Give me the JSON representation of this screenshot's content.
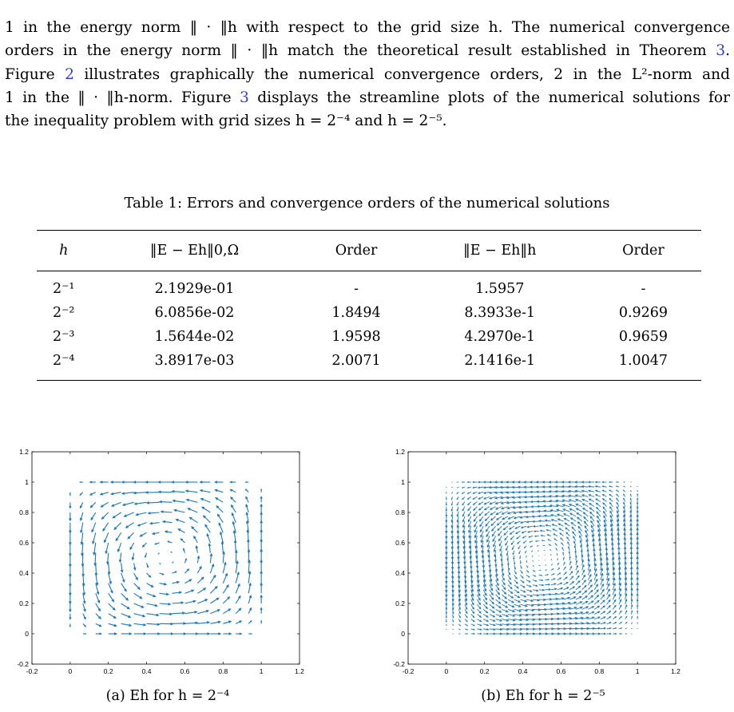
{
  "paragraph": {
    "line1": "1 in the energy norm ‖ · ‖h with respect to the grid size h. The numerical convergence",
    "line2_a": "orders in the energy norm ‖ · ‖h match the theoretical result established in Theorem ",
    "line2_ref": "3",
    "line2_b": ".",
    "line3_a": "Figure ",
    "line3_ref": "2",
    "line3_b": " illustrates graphically the numerical convergence orders, 2 in the L²-norm and",
    "line4_a": "1 in the ‖ · ‖h-norm. Figure ",
    "line4_ref": "3",
    "line4_b": " displays the streamline plots of the numerical solutions for",
    "line5": "the inequality problem with grid sizes h = 2⁻⁴ and h = 2⁻⁵."
  },
  "table": {
    "caption": "Table 1: Errors and convergence orders of the numerical solutions",
    "headers": [
      "h",
      "‖E − Eh‖0,Ω",
      "Order",
      "‖E − Eh‖h",
      "Order"
    ],
    "rows": [
      [
        "2⁻¹",
        "2.1929e-01",
        "-",
        "1.5957",
        "-"
      ],
      [
        "2⁻²",
        "6.0856e-02",
        "1.8494",
        "8.3933e-1",
        "0.9269"
      ],
      [
        "2⁻³",
        "1.5644e-02",
        "1.9598",
        "4.2970e-1",
        "0.9659"
      ],
      [
        "2⁻⁴",
        "3.8917e-03",
        "2.0071",
        "2.1416e-1",
        "1.0047"
      ]
    ]
  },
  "figures": {
    "x_ticks": [
      "-0.2",
      "0",
      "0.2",
      "0.4",
      "0.6",
      "0.8",
      "1",
      "1.2"
    ],
    "y_ticks": [
      "1.2",
      "1",
      "0.8",
      "0.6",
      "0.4",
      "0.2",
      "0",
      "-0.2"
    ],
    "arrow_color": "#1f77b4",
    "left_caption": "(a) Eh for h = 2⁻⁴",
    "right_caption": "(b) Eh for h = 2⁻⁵"
  }
}
